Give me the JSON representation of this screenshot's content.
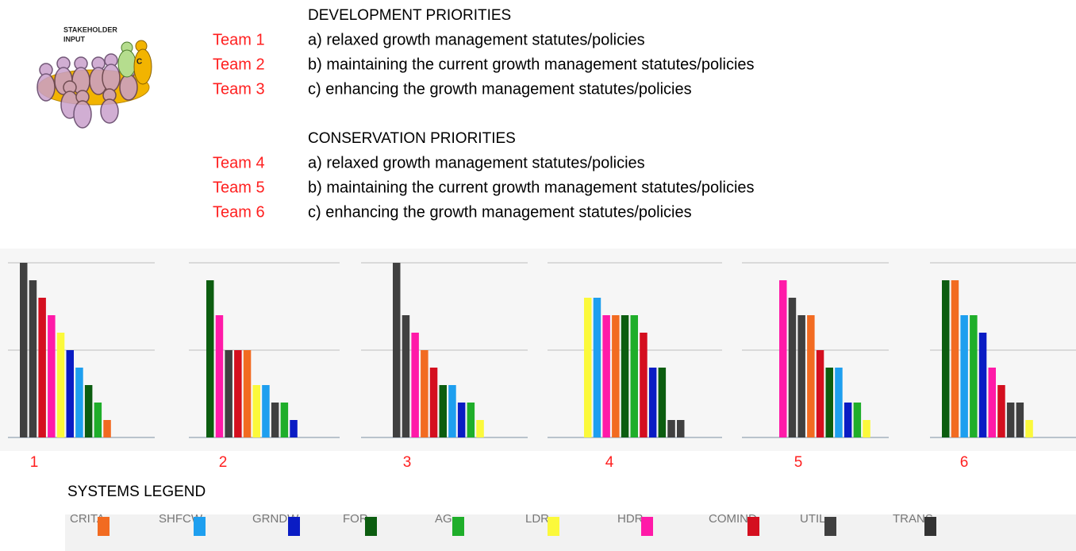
{
  "header": {
    "icon_label": [
      "STAKEHOLDER",
      "INPUT"
    ],
    "icon_letter": "C",
    "sections": [
      {
        "title": "DEVELOPMENT PRIORITIES",
        "items": [
          {
            "team": "Team 1",
            "text": "a) relaxed growth management statutes/policies"
          },
          {
            "team": "Team 2",
            "text": "b) maintaining the current growth management statutes/policies"
          },
          {
            "team": "Team 3",
            "text": "c) enhancing the growth management statutes/policies"
          }
        ]
      },
      {
        "title": "CONSERVATION PRIORITIES",
        "items": [
          {
            "team": "Team 4",
            "text": "a) relaxed growth management statutes/policies"
          },
          {
            "team": "Team 5",
            "text": "b) maintaining the current growth management statutes/policies"
          },
          {
            "team": "Team 6",
            "text": "c) enhancing the growth management statutes/policies"
          }
        ]
      }
    ]
  },
  "chart_data": [
    {
      "type": "bar",
      "title": "1",
      "ylim": [
        0,
        10
      ],
      "yticks": [
        0,
        5,
        10
      ],
      "grid": true,
      "values": [
        10,
        9,
        8,
        7,
        6,
        5,
        4,
        3,
        2,
        1
      ],
      "colors": [
        "#404040",
        "#404040",
        "#d40f1f",
        "#ff1aa8",
        "#fbf93b",
        "#0a1cc4",
        "#1e9fef",
        "#0c5d10",
        "#1fae2a",
        "#f26b21"
      ]
    },
    {
      "type": "bar",
      "title": "2",
      "ylim": [
        0,
        10
      ],
      "yticks": [
        0,
        5,
        10
      ],
      "grid": true,
      "values": [
        9,
        7,
        5,
        5,
        5,
        3,
        3,
        2,
        2,
        1
      ],
      "colors": [
        "#0c5d10",
        "#ff1aa8",
        "#404040",
        "#d40f1f",
        "#f26b21",
        "#fbf93b",
        "#1e9fef",
        "#404040",
        "#1fae2a",
        "#0a1cc4"
      ]
    },
    {
      "type": "bar",
      "title": "3",
      "ylim": [
        0,
        10
      ],
      "yticks": [
        0,
        5,
        10
      ],
      "grid": true,
      "values": [
        10,
        7,
        6,
        5,
        4,
        3,
        3,
        2,
        2,
        1
      ],
      "colors": [
        "#404040",
        "#404040",
        "#ff1aa8",
        "#f26b21",
        "#d40f1f",
        "#0c5d10",
        "#1e9fef",
        "#0a1cc4",
        "#1fae2a",
        "#fbf93b"
      ]
    },
    {
      "type": "bar",
      "title": "4",
      "ylim": [
        0,
        10
      ],
      "yticks": [
        0,
        5,
        10
      ],
      "grid": true,
      "values": [
        8,
        8,
        7,
        7,
        7,
        7,
        6,
        4,
        4,
        1,
        1
      ],
      "colors": [
        "#fbf93b",
        "#1e9fef",
        "#ff1aa8",
        "#f26b21",
        "#0c5d10",
        "#1fae2a",
        "#d40f1f",
        "#0a1cc4",
        "#0c5d10",
        "#404040",
        "#404040"
      ]
    },
    {
      "type": "bar",
      "title": "5",
      "ylim": [
        0,
        10
      ],
      "yticks": [
        0,
        5,
        10
      ],
      "grid": true,
      "values": [
        9,
        8,
        7,
        7,
        5,
        4,
        4,
        2,
        2,
        1
      ],
      "colors": [
        "#ff1aa8",
        "#404040",
        "#404040",
        "#f26b21",
        "#d40f1f",
        "#0c5d10",
        "#1e9fef",
        "#0a1cc4",
        "#1fae2a",
        "#fbf93b"
      ]
    },
    {
      "type": "bar",
      "title": "6",
      "ylim": [
        0,
        10
      ],
      "yticks": [
        0,
        5,
        10
      ],
      "grid": true,
      "values": [
        9,
        9,
        7,
        7,
        6,
        4,
        3,
        2,
        2,
        1
      ],
      "colors": [
        "#0c5d10",
        "#f26b21",
        "#1e9fef",
        "#1fae2a",
        "#0a1cc4",
        "#ff1aa8",
        "#d40f1f",
        "#404040",
        "#404040",
        "#fbf93b"
      ]
    }
  ],
  "legend": {
    "title": "SYSTEMS LEGEND",
    "items": [
      {
        "name": "CRITA",
        "color": "#f26b21"
      },
      {
        "name": "SHFCW",
        "color": "#1e9fef"
      },
      {
        "name": "GRNDW",
        "color": "#0a1cc4"
      },
      {
        "name": "FOR",
        "color": "#0c5d10"
      },
      {
        "name": "AG",
        "color": "#1fae2a"
      },
      {
        "name": "LDR",
        "color": "#fbf93b"
      },
      {
        "name": "HDR",
        "color": "#ff1aa8"
      },
      {
        "name": "COMIND",
        "color": "#d40f1f"
      },
      {
        "name": "UTIL",
        "color": "#404040"
      },
      {
        "name": "TRANS",
        "color": "#333333"
      }
    ]
  }
}
